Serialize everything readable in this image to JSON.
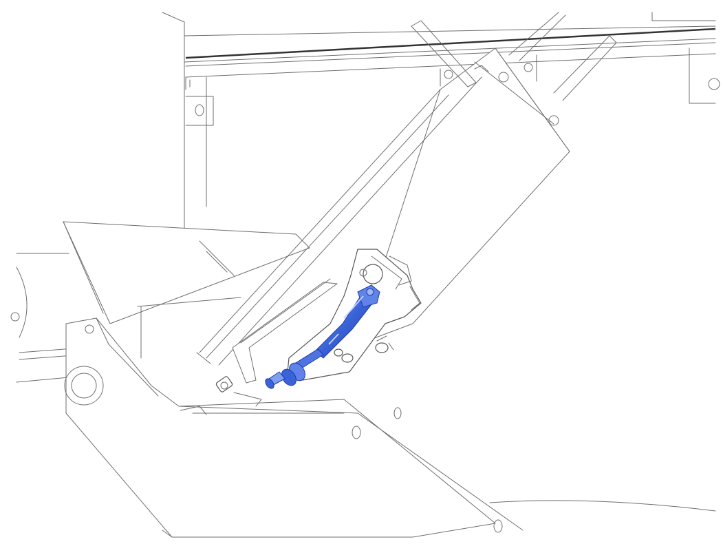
{
  "illustration": {
    "highlight_color": "#3a63d8",
    "highlight_light": "#7fa0f0",
    "highlight_dark": "#1f3aa8",
    "line_color": "#6e6e6e",
    "background": "#ffffff"
  }
}
